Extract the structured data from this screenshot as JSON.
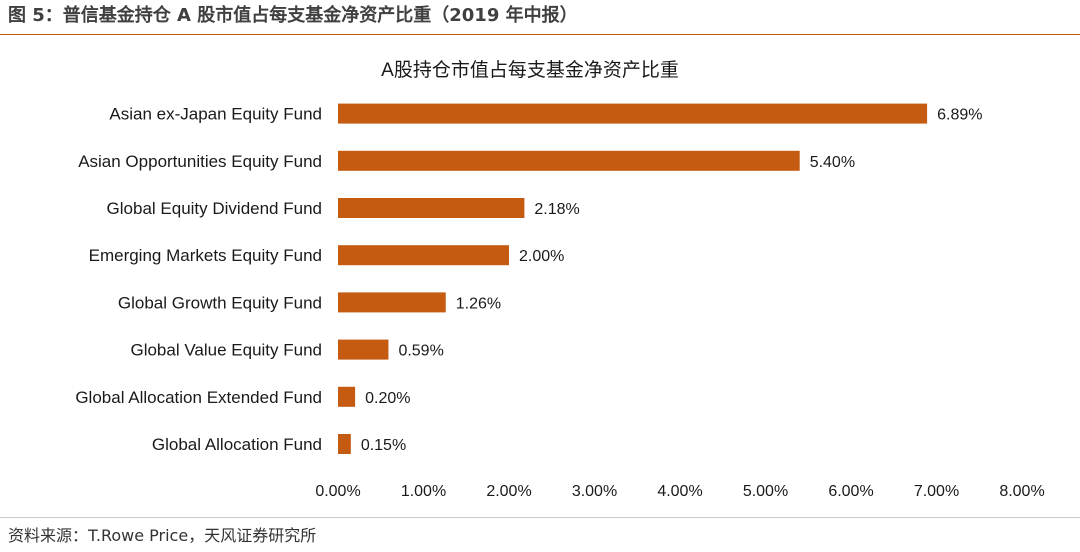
{
  "figure": {
    "caption": "图 5：普信基金持仓 A 股市值占每支基金净资产比重（2019 年中报）",
    "source": "资料来源：T.Rowe Price，天风证券研究所"
  },
  "colors": {
    "bar": "#c55a11",
    "rule": "#c55a11",
    "text": "#1a1a1a"
  },
  "chart_data": {
    "type": "bar",
    "orientation": "horizontal",
    "title": "A股持仓市值占每支基金净资产比重",
    "categories": [
      "Asian ex-Japan Equity Fund",
      "Asian Opportunities Equity Fund",
      "Global Equity Dividend Fund",
      "Emerging Markets Equity Fund",
      "Global Growth Equity Fund",
      "Global Value Equity Fund",
      "Global Allocation Extended Fund",
      "Global Allocation Fund"
    ],
    "values": [
      6.89,
      5.4,
      2.18,
      2.0,
      1.26,
      0.59,
      0.2,
      0.15
    ],
    "data_labels": [
      "6.89%",
      "5.40%",
      "2.18%",
      "2.00%",
      "1.26%",
      "0.59%",
      "0.20%",
      "0.15%"
    ],
    "xlim": [
      0,
      8
    ],
    "x_ticks": [
      0,
      1,
      2,
      3,
      4,
      5,
      6,
      7,
      8
    ],
    "x_tick_labels": [
      "0.00%",
      "1.00%",
      "2.00%",
      "3.00%",
      "4.00%",
      "5.00%",
      "6.00%",
      "7.00%",
      "8.00%"
    ],
    "grid": false,
    "legend": false
  }
}
